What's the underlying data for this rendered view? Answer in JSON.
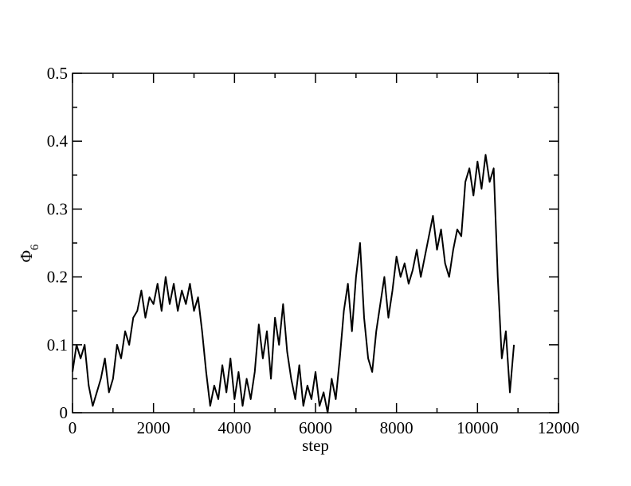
{
  "chart_data": {
    "type": "line",
    "xlabel": "step",
    "ylabel": "Φ",
    "ylabel_subscript": "6",
    "x": [
      0,
      100,
      200,
      300,
      400,
      500,
      600,
      700,
      800,
      900,
      1000,
      1100,
      1200,
      1300,
      1400,
      1500,
      1600,
      1700,
      1800,
      1900,
      2000,
      2100,
      2200,
      2300,
      2400,
      2500,
      2600,
      2700,
      2800,
      2900,
      3000,
      3100,
      3200,
      3300,
      3400,
      3500,
      3600,
      3700,
      3800,
      3900,
      4000,
      4100,
      4200,
      4300,
      4400,
      4500,
      4600,
      4700,
      4800,
      4900,
      5000,
      5100,
      5200,
      5300,
      5400,
      5500,
      5600,
      5700,
      5800,
      5900,
      6000,
      6100,
      6200,
      6300,
      6400,
      6500,
      6600,
      6700,
      6800,
      6900,
      7000,
      7100,
      7200,
      7300,
      7400,
      7500,
      7600,
      7700,
      7800,
      7900,
      8000,
      8100,
      8200,
      8300,
      8400,
      8500,
      8600,
      8700,
      8800,
      8900,
      9000,
      9100,
      9200,
      9300,
      9400,
      9500,
      9600,
      9700,
      9800,
      9900,
      10000,
      10100,
      10200,
      10300,
      10400,
      10500,
      10600,
      10700,
      10800,
      10900
    ],
    "series": [
      {
        "color": "#000000",
        "values": [
          0.06,
          0.1,
          0.08,
          0.1,
          0.04,
          0.01,
          0.03,
          0.05,
          0.08,
          0.03,
          0.05,
          0.1,
          0.08,
          0.12,
          0.1,
          0.14,
          0.15,
          0.18,
          0.14,
          0.17,
          0.16,
          0.19,
          0.15,
          0.2,
          0.16,
          0.19,
          0.15,
          0.18,
          0.16,
          0.19,
          0.15,
          0.17,
          0.12,
          0.06,
          0.01,
          0.04,
          0.02,
          0.07,
          0.03,
          0.08,
          0.02,
          0.06,
          0.01,
          0.05,
          0.02,
          0.06,
          0.13,
          0.08,
          0.12,
          0.05,
          0.14,
          0.1,
          0.16,
          0.09,
          0.05,
          0.02,
          0.07,
          0.01,
          0.04,
          0.02,
          0.06,
          0.01,
          0.03,
          0.0,
          0.05,
          0.02,
          0.08,
          0.15,
          0.19,
          0.12,
          0.2,
          0.25,
          0.14,
          0.08,
          0.06,
          0.12,
          0.16,
          0.2,
          0.14,
          0.18,
          0.23,
          0.2,
          0.22,
          0.19,
          0.21,
          0.24,
          0.2,
          0.23,
          0.26,
          0.29,
          0.24,
          0.27,
          0.22,
          0.2,
          0.24,
          0.27,
          0.26,
          0.34,
          0.36,
          0.32,
          0.37,
          0.33,
          0.38,
          0.34,
          0.36,
          0.2,
          0.08,
          0.12,
          0.03,
          0.1
        ]
      }
    ],
    "xlim": [
      0,
      12000
    ],
    "ylim": [
      0,
      0.5
    ],
    "xticks": [
      0,
      2000,
      4000,
      6000,
      8000,
      10000,
      12000
    ],
    "yticks": [
      0,
      0.1,
      0.2,
      0.3,
      0.4,
      0.5
    ],
    "xminorticks": [
      1000,
      3000,
      5000,
      7000,
      9000,
      11000
    ],
    "yminorticks": [
      0.05,
      0.15,
      0.25,
      0.35,
      0.45
    ],
    "grid": false
  }
}
